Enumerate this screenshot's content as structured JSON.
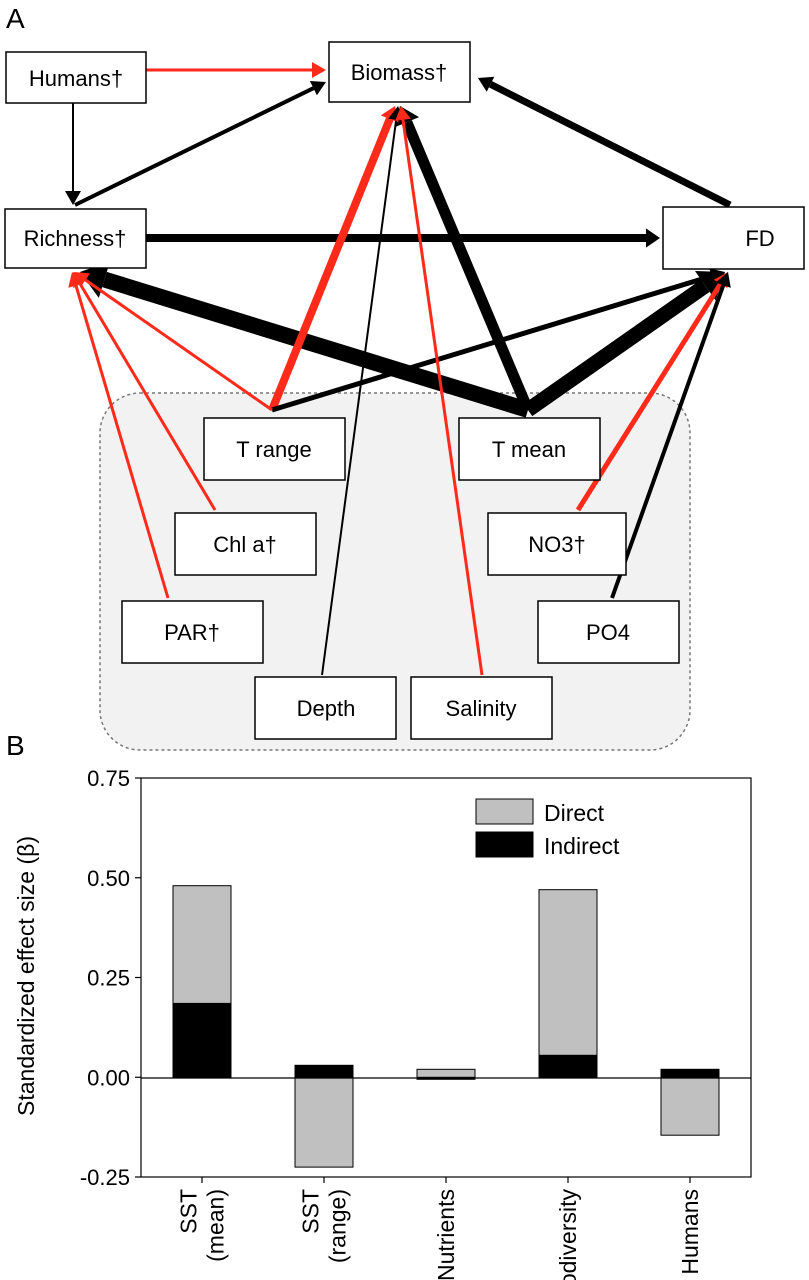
{
  "panel_a": {
    "label": "A",
    "nodes": {
      "humans": "Humans†",
      "biomass": "Biomass†",
      "richness": "Richness†",
      "fd": "FD",
      "t_range": "T range",
      "t_mean": "T mean",
      "chl_a": "Chl a†",
      "no3": "NO3†",
      "par": "PAR†",
      "po4": "PO4",
      "depth": "Depth",
      "salinity": "Salinity"
    },
    "edge_colors": {
      "positive": "#ff2a1a",
      "negative": "#000000"
    }
  },
  "panel_b": {
    "label": "B"
  },
  "chart_data": {
    "type": "bar",
    "stacked": true,
    "categories": [
      "SST (mean)",
      "SST (range)",
      "Nutrients",
      "Biodiversity",
      "Humans"
    ],
    "category_lines": [
      [
        "SST",
        "(mean)"
      ],
      [
        "SST",
        "(range)"
      ],
      [
        "Nutrients"
      ],
      [
        "Biodiversity"
      ],
      [
        "Humans"
      ]
    ],
    "series": [
      {
        "name": "Direct",
        "color": "#c0c0c0",
        "values": [
          0.295,
          -0.225,
          0.02,
          0.415,
          -0.145
        ]
      },
      {
        "name": "Indirect",
        "color": "#000000",
        "values": [
          0.185,
          0.03,
          -0.005,
          0.055,
          0.02
        ]
      }
    ],
    "ylabel": "Standardized effect size (β)",
    "ylim": [
      -0.25,
      0.75
    ],
    "yticks": [
      -0.25,
      0,
      0.25,
      0.5,
      0.75
    ],
    "ytick_labels": [
      "-0.25",
      "0.00",
      "0.25",
      "0.50",
      "0.75"
    ],
    "legend_position": "top-right",
    "grid": false
  }
}
